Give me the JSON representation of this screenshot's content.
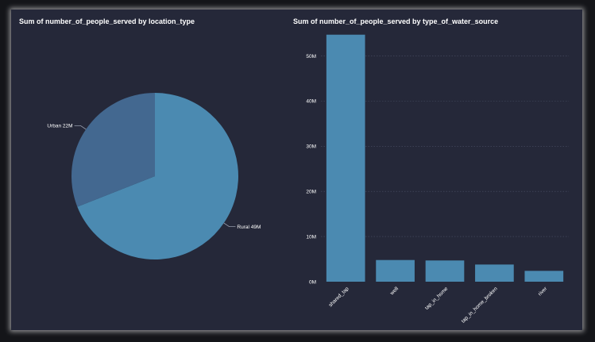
{
  "colors": {
    "background": "#252839",
    "pie_rural": "#4b8ab1",
    "pie_urban": "#436890",
    "bar": "#4b8ab1",
    "grid": "#4a4f66",
    "text": "#ffffff"
  },
  "chart_data": [
    {
      "type": "pie",
      "title": "Sum of number_of_people_served by location_type",
      "slices": [
        {
          "label": "Rural",
          "value": 49,
          "display": "Rural 49M"
        },
        {
          "label": "Urban",
          "value": 22,
          "display": "Urban 22M"
        }
      ]
    },
    {
      "type": "bar",
      "title": "Sum of number_of_people_served by type_of_water_source",
      "categories": [
        "shared_tap",
        "well",
        "tap_in_home",
        "tap_in_home_broken",
        "river"
      ],
      "values": [
        54.7,
        4.8,
        4.7,
        3.8,
        2.4
      ],
      "ylim": [
        0,
        55
      ],
      "yticks": [
        {
          "value": 0,
          "label": "0M"
        },
        {
          "value": 10,
          "label": "10M"
        },
        {
          "value": 20,
          "label": "20M"
        },
        {
          "value": 30,
          "label": "30M"
        },
        {
          "value": 40,
          "label": "40M"
        },
        {
          "value": 50,
          "label": "50M"
        }
      ],
      "grid": true
    }
  ]
}
